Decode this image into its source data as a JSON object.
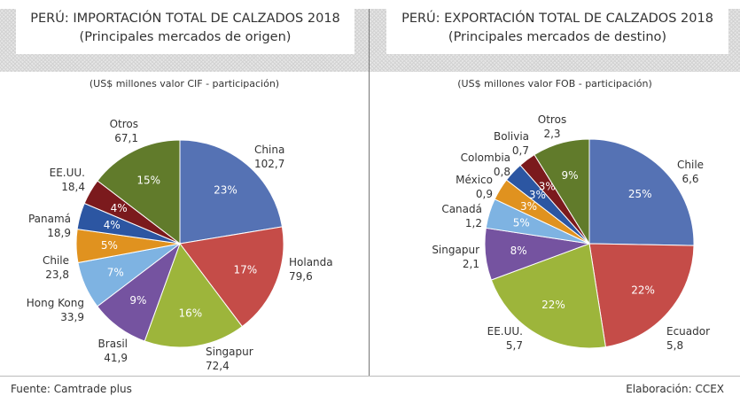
{
  "chart_data": [
    {
      "type": "pie",
      "title": "PERÚ: IMPORTACIÓN TOTAL DE CALZADOS 2018",
      "subtitle": "(Principales mercados de origen)",
      "unit_note": "(US$ millones valor CIF - participación)",
      "categories": [
        "China",
        "Holanda",
        "Singapur",
        "Brasil",
        "Hong Kong",
        "Chile",
        "Panamá",
        "EE.UU.",
        "Otros"
      ],
      "values": [
        "102,7",
        "79,6",
        "72,4",
        "41,9",
        "33,9",
        "23,8",
        "18,9",
        "18,4",
        "67,1"
      ],
      "numeric": [
        102.7,
        79.6,
        72.4,
        41.9,
        33.9,
        23.8,
        18.9,
        18.4,
        67.1
      ],
      "percents": [
        "23%",
        "17%",
        "16%",
        "9%",
        "7%",
        "5%",
        "4%",
        "4%",
        "15%"
      ],
      "colors": [
        "#5572b4",
        "#c54c48",
        "#9db53b",
        "#7553a0",
        "#7eb3e2",
        "#e0921f",
        "#2c56a2",
        "#7b1a1d",
        "#617b2b"
      ]
    },
    {
      "type": "pie",
      "title": "PERÚ: EXPORTACIÓN TOTAL DE CALZADOS 2018",
      "subtitle": "(Principales mercados de destino)",
      "unit_note": "(US$ millones valor FOB - participación)",
      "categories": [
        "Chile",
        "Ecuador",
        "EE.UU.",
        "Singapur",
        "Canadá",
        "México",
        "Colombia",
        "Bolivia",
        "Otros"
      ],
      "values": [
        "6,6",
        "5,8",
        "5,7",
        "2,1",
        "1,2",
        "0,9",
        "0,8",
        "0,7",
        "2,3"
      ],
      "numeric": [
        6.6,
        5.8,
        5.7,
        2.1,
        1.2,
        0.9,
        0.8,
        0.7,
        2.3
      ],
      "percents": [
        "25%",
        "22%",
        "22%",
        "8%",
        "5%",
        "3%",
        "3%",
        "3%",
        "9%"
      ],
      "colors": [
        "#5572b4",
        "#c54c48",
        "#9db53b",
        "#7553a0",
        "#7eb3e2",
        "#e0921f",
        "#2c56a2",
        "#7b1a1d",
        "#617b2b"
      ]
    }
  ],
  "footer": {
    "source": "Fuente: Camtrade plus",
    "credit": "Elaboración: CCEX"
  }
}
